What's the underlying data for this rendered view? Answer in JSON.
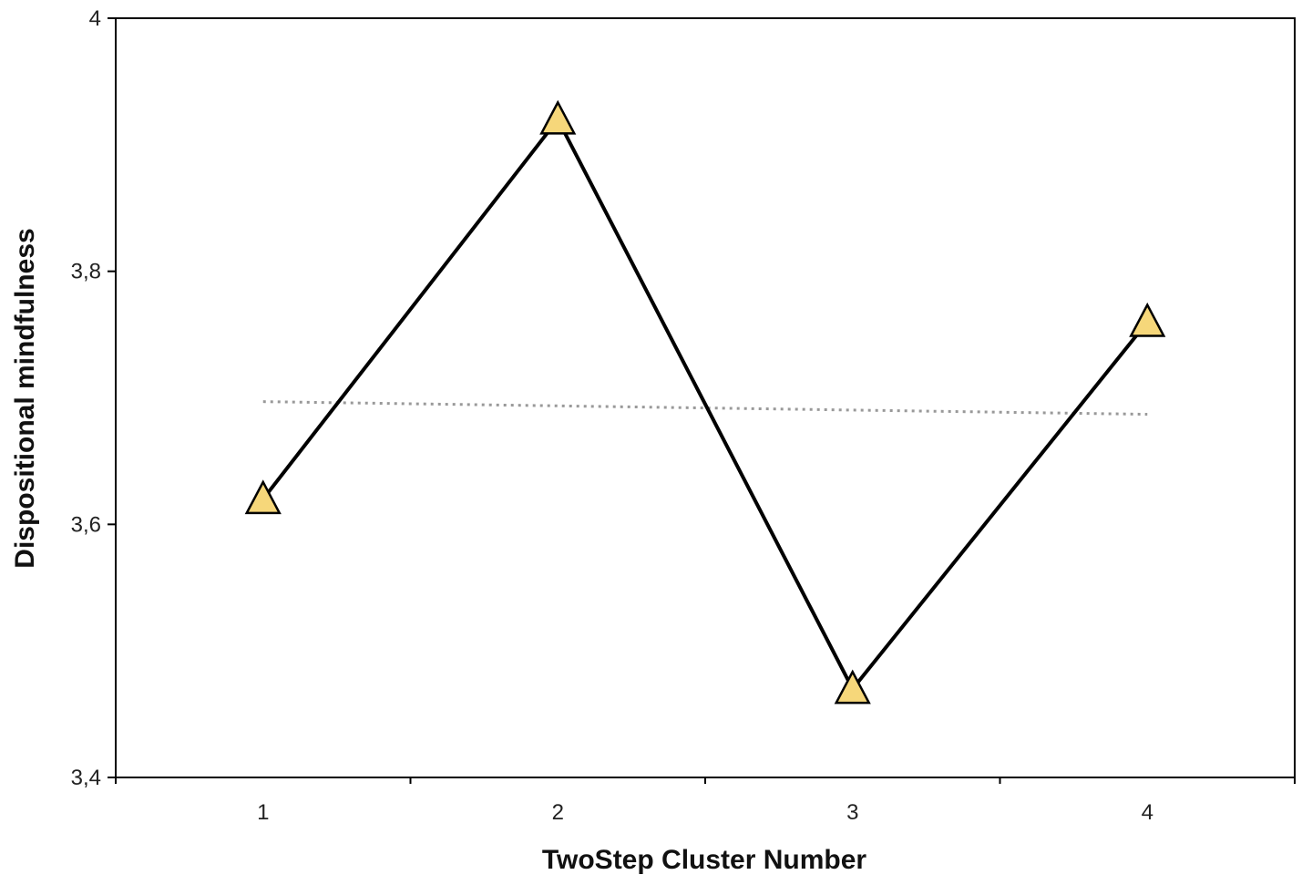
{
  "chart_data": {
    "type": "line",
    "title": "",
    "xlabel": "TwoStep Cluster Number",
    "ylabel": "Dispositional  mindfulness",
    "x": [
      1,
      2,
      3,
      4
    ],
    "x_tick_labels": [
      "1",
      "2",
      "3",
      "4"
    ],
    "xlim": [
      0.5,
      4.5
    ],
    "ylim": [
      3.4,
      4.0
    ],
    "y_ticks": [
      3.4,
      3.6,
      3.8,
      4.0
    ],
    "y_tick_labels": [
      "3,4",
      "3,6",
      "3,8",
      "4"
    ],
    "series": [
      {
        "values": [
          3.62,
          3.92,
          3.47,
          3.76
        ],
        "line_color": "#000000",
        "marker": "triangle",
        "marker_color": "#F6D77A"
      }
    ],
    "reference_line": {
      "style": "dotted",
      "color": "#999999",
      "start": [
        1,
        3.697
      ],
      "end": [
        4,
        3.687
      ]
    },
    "grid": false,
    "legend": "none"
  }
}
